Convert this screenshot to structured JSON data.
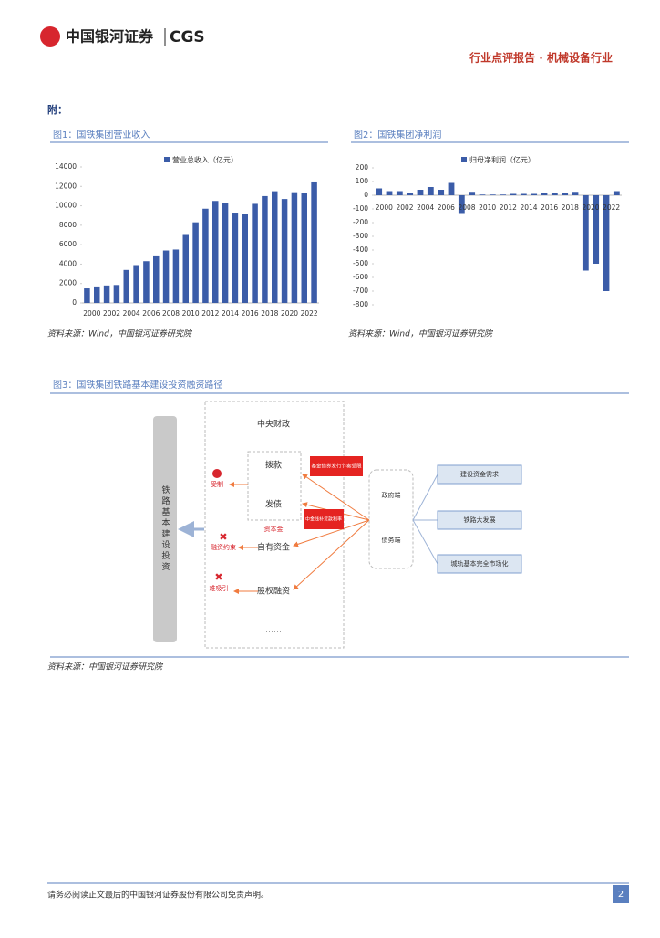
{
  "header": {
    "logo": "中国银河证券",
    "logo_en": "CGS",
    "report_type": "行业点评报告 · 机械设备行业"
  },
  "appendix_label": "附：",
  "chart_data": [
    {
      "type": "bar",
      "title": "图1：国铁集团营业收入",
      "source": "资料来源：Wind，中国银河证券研究院",
      "categories": [
        "2000",
        null,
        "2002",
        null,
        "2004",
        null,
        "2006",
        null,
        "2008",
        null,
        "2010",
        null,
        "2012",
        null,
        "2014",
        null,
        "2016",
        null,
        "2018",
        null,
        "2020",
        null,
        "2022",
        null
      ],
      "series": [
        {
          "name": "营业总收入（亿元）",
          "color": "#3b5ca8",
          "values": [
            1500,
            1700,
            1800,
            1850,
            3400,
            3900,
            4300,
            4800,
            5400,
            5500,
            7000,
            8300,
            9700,
            10500,
            10300,
            9300,
            9200,
            10200,
            11000,
            11500,
            10700,
            11400,
            11300,
            12500
          ]
        }
      ],
      "ylim": [
        0,
        14000
      ],
      "yticks": [
        0,
        2000,
        4000,
        6000,
        8000,
        10000,
        12000,
        14000
      ]
    },
    {
      "type": "bar",
      "title": "图2：国铁集团净利润",
      "source": "资料来源：Wind，中国银河证券研究院",
      "categories": [
        "2000",
        null,
        "2002",
        null,
        "2004",
        null,
        "2006",
        null,
        "2008",
        null,
        "2010",
        null,
        "2012",
        null,
        "2014",
        null,
        "2016",
        null,
        "2018",
        null,
        "2020",
        null,
        "2022",
        null
      ],
      "series": [
        {
          "name": "归母净利润（亿元）",
          "color": "#3b5ca8",
          "values": [
            50,
            30,
            30,
            20,
            40,
            60,
            40,
            90,
            -130,
            25,
            5,
            5,
            5,
            10,
            10,
            10,
            15,
            20,
            20,
            25,
            -550,
            -500,
            -700,
            30
          ]
        }
      ],
      "ylim": [
        -800,
        200
      ],
      "yticks": [
        -800,
        -700,
        -600,
        -500,
        -400,
        -300,
        -200,
        -100,
        0,
        100,
        200
      ]
    }
  ],
  "figure3": {
    "title": "图3：国铁集团铁路基本建设投资融资路径",
    "source": "资料来源：中国银河证券研究院",
    "left_label": "铁路基本建设投资",
    "central": "中央财政",
    "grant": "拨款",
    "bond": "发债",
    "capital": "资本金",
    "own_funds": "自有资金",
    "equity": "股权融资",
    "ellipsis": "……",
    "status": [
      "受制",
      "融资约束",
      "难吸引"
    ],
    "callouts": [
      "基金债券发行节奏受限",
      "中金线补贷款利率"
    ],
    "middle": [
      "政府端",
      "债务端"
    ],
    "right": [
      "建设资金需求",
      "铁路大发展",
      "城轨基本完全市场化"
    ]
  },
  "footer": {
    "disclaimer": "请务必阅读正文最后的中国银河证券股份有限公司免责声明。",
    "page": "2"
  }
}
